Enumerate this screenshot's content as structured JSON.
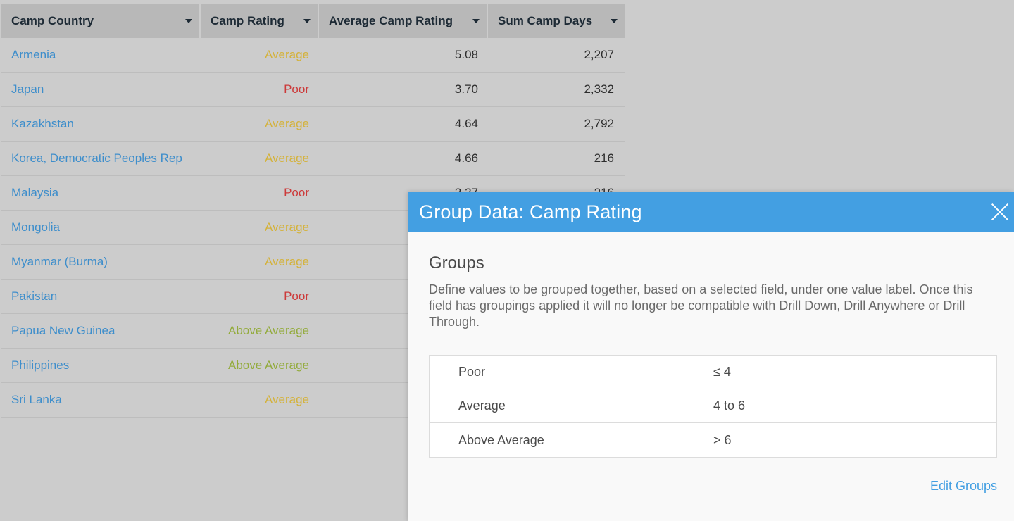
{
  "table": {
    "columns": [
      {
        "label": "Camp Country"
      },
      {
        "label": "Camp Rating"
      },
      {
        "label": "Average Camp Rating"
      },
      {
        "label": "Sum Camp Days"
      }
    ],
    "rows": [
      {
        "country": "Armenia",
        "rating": "Average",
        "avg": "5.08",
        "days": "2,207"
      },
      {
        "country": "Japan",
        "rating": "Poor",
        "avg": "3.70",
        "days": "2,332"
      },
      {
        "country": "Kazakhstan",
        "rating": "Average",
        "avg": "4.64",
        "days": "2,792"
      },
      {
        "country": "Korea, Democratic Peoples Rep",
        "rating": "Average",
        "avg": "4.66",
        "days": "216"
      },
      {
        "country": "Malaysia",
        "rating": "Poor",
        "avg": "3.37",
        "days": "216"
      },
      {
        "country": "Mongolia",
        "rating": "Average",
        "avg": "",
        "days": ""
      },
      {
        "country": "Myanmar (Burma)",
        "rating": "Average",
        "avg": "",
        "days": ""
      },
      {
        "country": "Pakistan",
        "rating": "Poor",
        "avg": "",
        "days": ""
      },
      {
        "country": "Papua New Guinea",
        "rating": "Above Average",
        "avg": "",
        "days": ""
      },
      {
        "country": "Philippines",
        "rating": "Above Average",
        "avg": "",
        "days": ""
      },
      {
        "country": "Sri Lanka",
        "rating": "Average",
        "avg": "",
        "days": ""
      }
    ]
  },
  "rating_colors": {
    "Poor": "#cc3a3a",
    "Average": "#d4b23a",
    "Above Average": "#93ab3c"
  },
  "modal": {
    "title": "Group Data: Camp Rating",
    "close_icon": "close-icon",
    "section_title": "Groups",
    "description": "Define values to be grouped together, based on a selected field, under one value label. Once this field has groupings applied it will no longer be compatible with Drill Down, Drill Anywhere or Drill Through.",
    "groups": [
      {
        "name": "Poor",
        "rule": "≤ 4"
      },
      {
        "name": "Average",
        "rule": "4 to 6"
      },
      {
        "name": "Above Average",
        "rule": "> 6"
      }
    ],
    "edit_link": "Edit Groups"
  }
}
